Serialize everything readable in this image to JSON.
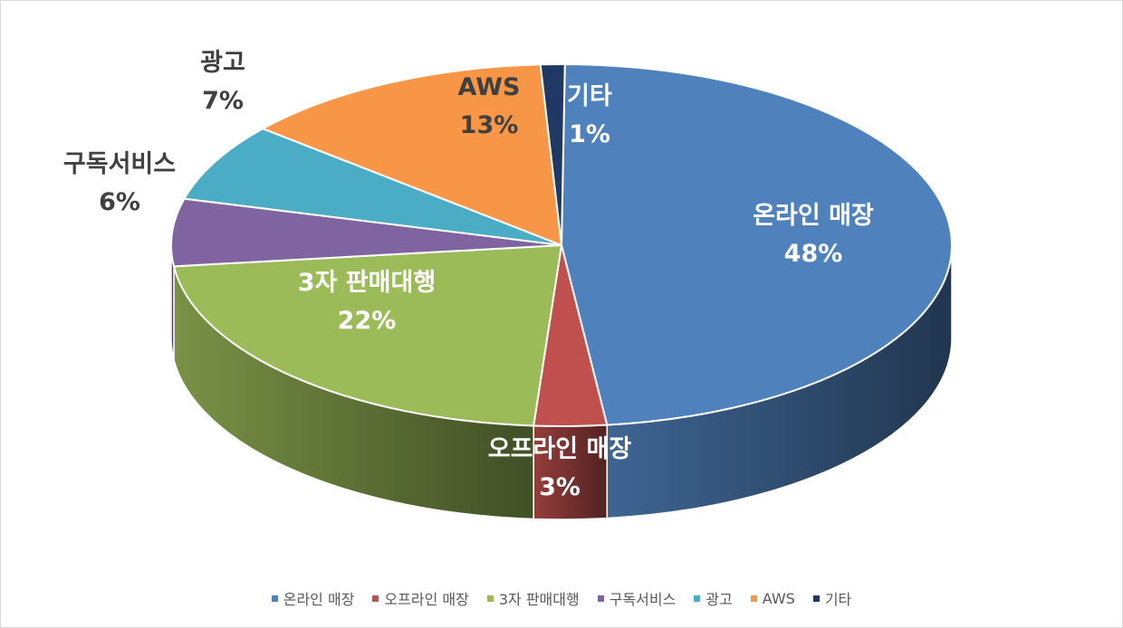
{
  "chart_data": {
    "type": "pie",
    "categories": [
      "온라인 매장",
      "오프라인 매장",
      "3자 판매대행",
      "구독서비스",
      "광고",
      "AWS",
      "기타"
    ],
    "values": [
      48,
      3,
      22,
      6,
      7,
      13,
      1
    ],
    "value_labels": [
      "48%",
      "3%",
      "22%",
      "6%",
      "7%",
      "13%",
      "1%"
    ],
    "colors": [
      "#4f81bd",
      "#c0504d",
      "#9bbb59",
      "#8064a2",
      "#4bacc6",
      "#f79646",
      "#1f3864"
    ],
    "legend_position": "bottom",
    "style": "3d"
  }
}
